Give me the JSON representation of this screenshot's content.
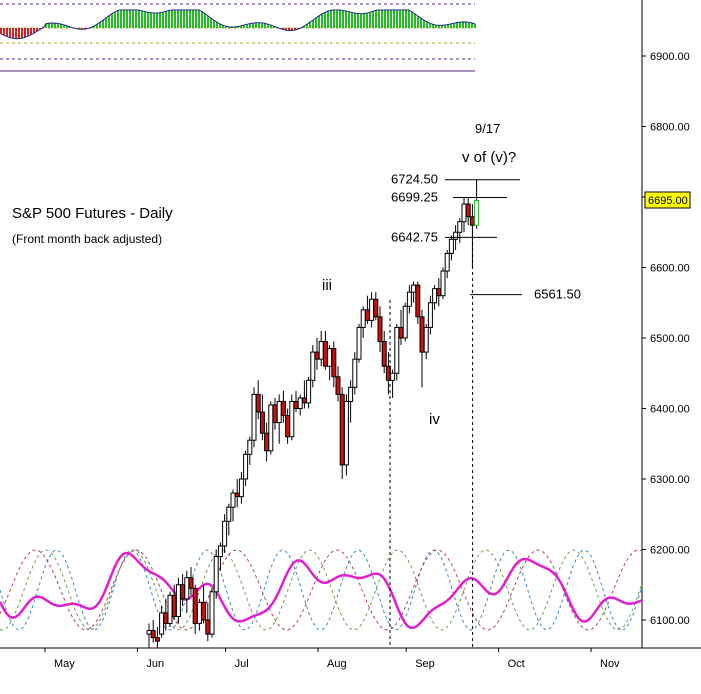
{
  "chart_data": {
    "type": "candlestick",
    "title": "S&P 500 Futures - Daily",
    "subtitle": "(Front month back adjusted)",
    "last_price": {
      "label": "6695.00",
      "value": 6695.0,
      "color": "#ffff00"
    },
    "y_axis": {
      "min": 6060,
      "max": 6965,
      "ticks": [
        6900,
        6800,
        6700,
        6600,
        6500,
        6400,
        6300,
        6200,
        6100
      ],
      "tick_labels": [
        "6900.00",
        "6800.00",
        "6700.00",
        "6600.00",
        "6500.00",
        "6400.00",
        "6300.00",
        "6200.00",
        "6100.00"
      ]
    },
    "x_axis": {
      "months": [
        {
          "label": "May",
          "day_index": 0
        },
        {
          "label": "Jun",
          "day_index": 22
        },
        {
          "label": "Jul",
          "day_index": 43
        },
        {
          "label": "Aug",
          "day_index": 65
        },
        {
          "label": "Sep",
          "day_index": 86
        },
        {
          "label": "Oct",
          "day_index": 108
        },
        {
          "label": "Nov",
          "day_index": 130
        }
      ]
    },
    "date_start": "2025-05-01",
    "candles": [
      {
        "o": 6080,
        "h": 6095,
        "l": 6060,
        "c": 6085
      },
      {
        "o": 6085,
        "h": 6100,
        "l": 6068,
        "c": 6075
      },
      {
        "o": 6075,
        "h": 6090,
        "l": 6060,
        "c": 6070
      },
      {
        "o": 6080,
        "h": 6120,
        "l": 6075,
        "c": 6110
      },
      {
        "o": 6110,
        "h": 6130,
        "l": 6085,
        "c": 6095
      },
      {
        "o": 6095,
        "h": 6140,
        "l": 6090,
        "c": 6135
      },
      {
        "o": 6135,
        "h": 6150,
        "l": 6100,
        "c": 6105
      },
      {
        "o": 6105,
        "h": 6160,
        "l": 6095,
        "c": 6150
      },
      {
        "o": 6150,
        "h": 6165,
        "l": 6120,
        "c": 6130
      },
      {
        "o": 6130,
        "h": 6170,
        "l": 6110,
        "c": 6160
      },
      {
        "o": 6160,
        "h": 6175,
        "l": 6135,
        "c": 6145
      },
      {
        "o": 6145,
        "h": 6150,
        "l": 6080,
        "c": 6095
      },
      {
        "o": 6095,
        "h": 6130,
        "l": 6085,
        "c": 6125
      },
      {
        "o": 6125,
        "h": 6150,
        "l": 6095,
        "c": 6100
      },
      {
        "o": 6100,
        "h": 6125,
        "l": 6070,
        "c": 6080
      },
      {
        "o": 6080,
        "h": 6145,
        "l": 6075,
        "c": 6140
      },
      {
        "o": 6140,
        "h": 6200,
        "l": 6130,
        "c": 6190
      },
      {
        "o": 6190,
        "h": 6210,
        "l": 6170,
        "c": 6205
      },
      {
        "o": 6205,
        "h": 6250,
        "l": 6195,
        "c": 6240
      },
      {
        "o": 6240,
        "h": 6265,
        "l": 6220,
        "c": 6260
      },
      {
        "o": 6260,
        "h": 6285,
        "l": 6240,
        "c": 6280
      },
      {
        "o": 6280,
        "h": 6300,
        "l": 6260,
        "c": 6275
      },
      {
        "o": 6275,
        "h": 6310,
        "l": 6265,
        "c": 6300
      },
      {
        "o": 6300,
        "h": 6340,
        "l": 6290,
        "c": 6335
      },
      {
        "o": 6335,
        "h": 6360,
        "l": 6320,
        "c": 6355
      },
      {
        "o": 6355,
        "h": 6430,
        "l": 6345,
        "c": 6420
      },
      {
        "o": 6420,
        "h": 6440,
        "l": 6385,
        "c": 6395
      },
      {
        "o": 6395,
        "h": 6420,
        "l": 6355,
        "c": 6365
      },
      {
        "o": 6365,
        "h": 6380,
        "l": 6325,
        "c": 6340
      },
      {
        "o": 6340,
        "h": 6410,
        "l": 6335,
        "c": 6405
      },
      {
        "o": 6405,
        "h": 6415,
        "l": 6370,
        "c": 6380
      },
      {
        "o": 6380,
        "h": 6420,
        "l": 6350,
        "c": 6410
      },
      {
        "o": 6410,
        "h": 6425,
        "l": 6380,
        "c": 6390
      },
      {
        "o": 6390,
        "h": 6400,
        "l": 6350,
        "c": 6360
      },
      {
        "o": 6360,
        "h": 6420,
        "l": 6355,
        "c": 6410
      },
      {
        "o": 6410,
        "h": 6425,
        "l": 6395,
        "c": 6400
      },
      {
        "o": 6400,
        "h": 6420,
        "l": 6390,
        "c": 6415
      },
      {
        "o": 6415,
        "h": 6440,
        "l": 6400,
        "c": 6408
      },
      {
        "o": 6408,
        "h": 6445,
        "l": 6400,
        "c": 6440
      },
      {
        "o": 6440,
        "h": 6490,
        "l": 6430,
        "c": 6480
      },
      {
        "o": 6480,
        "h": 6500,
        "l": 6455,
        "c": 6470
      },
      {
        "o": 6470,
        "h": 6510,
        "l": 6460,
        "c": 6495
      },
      {
        "o": 6495,
        "h": 6510,
        "l": 6455,
        "c": 6460
      },
      {
        "o": 6460,
        "h": 6490,
        "l": 6440,
        "c": 6485
      },
      {
        "o": 6485,
        "h": 6495,
        "l": 6430,
        "c": 6445
      },
      {
        "o": 6445,
        "h": 6460,
        "l": 6410,
        "c": 6420
      },
      {
        "o": 6420,
        "h": 6430,
        "l": 6300,
        "c": 6320
      },
      {
        "o": 6320,
        "h": 6420,
        "l": 6305,
        "c": 6410
      },
      {
        "o": 6410,
        "h": 6440,
        "l": 6380,
        "c": 6430
      },
      {
        "o": 6430,
        "h": 6480,
        "l": 6420,
        "c": 6470
      },
      {
        "o": 6470,
        "h": 6520,
        "l": 6465,
        "c": 6515
      },
      {
        "o": 6515,
        "h": 6545,
        "l": 6500,
        "c": 6540
      },
      {
        "o": 6540,
        "h": 6560,
        "l": 6520,
        "c": 6525
      },
      {
        "o": 6525,
        "h": 6565,
        "l": 6515,
        "c": 6555
      },
      {
        "o": 6555,
        "h": 6565,
        "l": 6525,
        "c": 6530
      },
      {
        "o": 6530,
        "h": 6545,
        "l": 6480,
        "c": 6495
      },
      {
        "o": 6495,
        "h": 6510,
        "l": 6450,
        "c": 6460
      },
      {
        "o": 6460,
        "h": 6480,
        "l": 6420,
        "c": 6440
      },
      {
        "o": 6440,
        "h": 6455,
        "l": 6415,
        "c": 6450
      },
      {
        "o": 6450,
        "h": 6520,
        "l": 6440,
        "c": 6515
      },
      {
        "o": 6515,
        "h": 6540,
        "l": 6490,
        "c": 6500
      },
      {
        "o": 6500,
        "h": 6550,
        "l": 6495,
        "c": 6545
      },
      {
        "o": 6545,
        "h": 6575,
        "l": 6535,
        "c": 6565
      },
      {
        "o": 6565,
        "h": 6580,
        "l": 6550,
        "c": 6575
      },
      {
        "o": 6575,
        "h": 6580,
        "l": 6520,
        "c": 6530
      },
      {
        "o": 6530,
        "h": 6540,
        "l": 6430,
        "c": 6480
      },
      {
        "o": 6480,
        "h": 6520,
        "l": 6470,
        "c": 6515
      },
      {
        "o": 6515,
        "h": 6560,
        "l": 6505,
        "c": 6550
      },
      {
        "o": 6550,
        "h": 6575,
        "l": 6540,
        "c": 6570
      },
      {
        "o": 6570,
        "h": 6585,
        "l": 6545,
        "c": 6560
      },
      {
        "o": 6560,
        "h": 6600,
        "l": 6555,
        "c": 6595
      },
      {
        "o": 6595,
        "h": 6625,
        "l": 6585,
        "c": 6620
      },
      {
        "o": 6620,
        "h": 6645,
        "l": 6610,
        "c": 6640
      },
      {
        "o": 6640,
        "h": 6660,
        "l": 6625,
        "c": 6650
      },
      {
        "o": 6650,
        "h": 6670,
        "l": 6635,
        "c": 6665
      },
      {
        "o": 6665,
        "h": 6700,
        "l": 6650,
        "c": 6690
      },
      {
        "o": 6690,
        "h": 6700,
        "l": 6660,
        "c": 6672
      },
      {
        "o": 6672,
        "h": 6690,
        "l": 6600,
        "c": 6660
      },
      {
        "o": 6660,
        "h": 6724.5,
        "l": 6655,
        "c": 6695
      }
    ],
    "annotations": [
      {
        "text": "iii",
        "kind": "wave"
      },
      {
        "text": "iv",
        "kind": "wave"
      },
      {
        "text": "9/17",
        "kind": "date"
      },
      {
        "text": "v of (v)?",
        "kind": "wave"
      }
    ],
    "levels": [
      {
        "label": "6724.50",
        "value": 6724.5
      },
      {
        "label": "6699.25",
        "value": 6699.25
      },
      {
        "label": "6642.75",
        "value": 6642.75
      },
      {
        "label": "6561.50",
        "value": 6561.5
      }
    ],
    "cycle_colors": {
      "main": "#e020d0",
      "dashed_1": "#3a8ac0",
      "dashed_2": "#7a9a50",
      "dashed_3": "#b04060"
    },
    "indicator_colors": {
      "up": "#22c022",
      "down": "#d02020",
      "line": "#1a2a8a",
      "guide": "#5a2a8a",
      "mid": "#b0a040"
    }
  }
}
